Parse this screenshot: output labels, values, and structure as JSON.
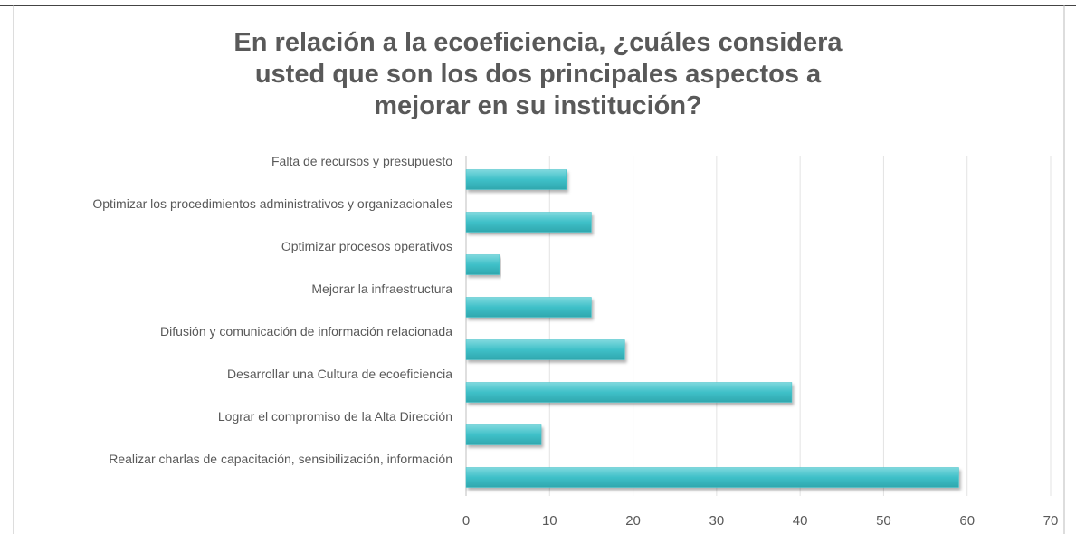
{
  "chart_data": {
    "type": "bar",
    "orientation": "horizontal",
    "title": "En relación a la ecoeficiencia, ¿cuáles considera usted que son los dos principales aspectos a mejorar en su institución?",
    "categories": [
      "Falta de recursos y presupuesto",
      "Optimizar los procedimientos administrativos y organizacionales",
      "Optimizar procesos operativos",
      "Mejorar la infraestructura",
      "Difusión y comunicación de información relacionada",
      "Desarrollar una Cultura de ecoeficiencia",
      "Lograr el compromiso de la Alta Dirección",
      "Realizar charlas de capacitación, sensibilización, información"
    ],
    "values": [
      12,
      15,
      4,
      15,
      19,
      39,
      9,
      59
    ],
    "color": "#3fc0c8",
    "xlim": [
      0,
      70
    ],
    "xticks": [
      0,
      10,
      20,
      30,
      40,
      50,
      60,
      70
    ],
    "grid": true
  }
}
